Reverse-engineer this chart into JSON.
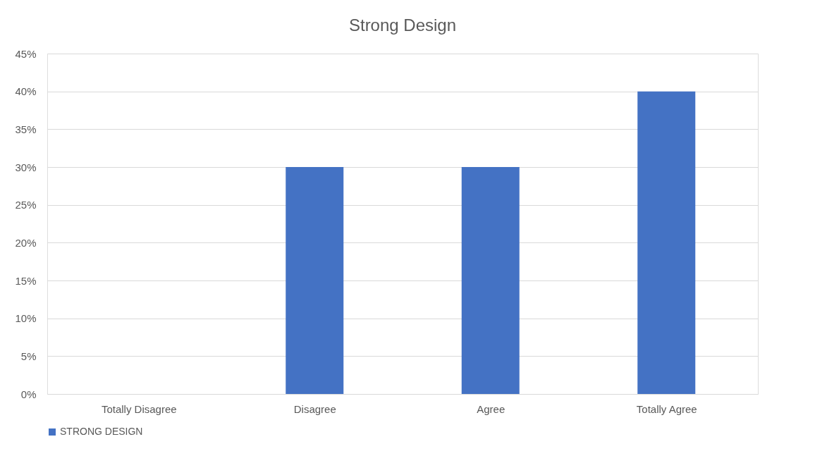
{
  "chart_data": {
    "type": "bar",
    "title": "Strong Design",
    "categories": [
      "Totally Disagree",
      "Disagree",
      "Agree",
      "Totally Agree"
    ],
    "series": [
      {
        "name": "STRONG DESIGN",
        "color": "#4472c4",
        "values": [
          0,
          30,
          30,
          40
        ]
      }
    ],
    "ylim": [
      0,
      45
    ],
    "yticks": [
      {
        "value": 0,
        "label": "0%"
      },
      {
        "value": 5,
        "label": "5%"
      },
      {
        "value": 10,
        "label": "10%"
      },
      {
        "value": 15,
        "label": "15%"
      },
      {
        "value": 20,
        "label": "20%"
      },
      {
        "value": 25,
        "label": "25%"
      },
      {
        "value": 30,
        "label": "30%"
      },
      {
        "value": 35,
        "label": "35%"
      },
      {
        "value": 40,
        "label": "40%"
      },
      {
        "value": 45,
        "label": "45%"
      }
    ],
    "grid": "y",
    "legend": "bottom"
  }
}
